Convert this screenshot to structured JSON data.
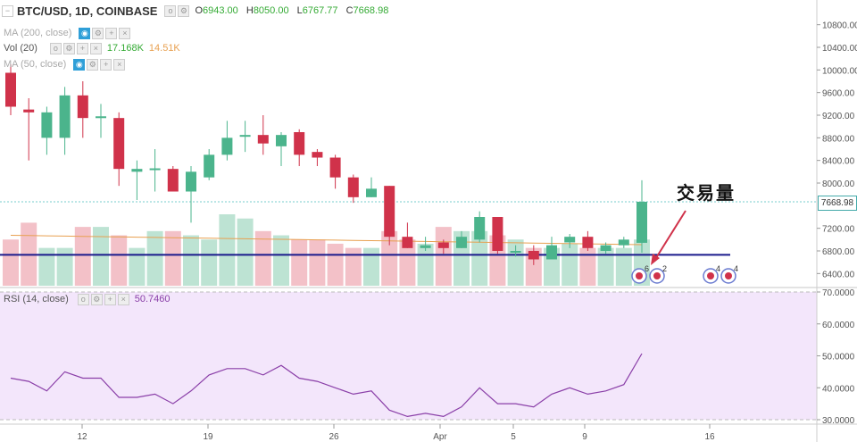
{
  "header": {
    "symbol": "BTC/USD, 1D, COINBASE",
    "open_label": "O",
    "open": "6943.00",
    "high_label": "H",
    "high": "8050.00",
    "low_label": "L",
    "low": "6767.77",
    "close_label": "C",
    "close": "7668.98"
  },
  "indicators": {
    "ma200": "MA (200, close)",
    "vol": "Vol (20)",
    "vol_value1": "17.168K",
    "vol_value2": "14.51K",
    "ma50": "MA (50, close)",
    "rsi": "RSI (14, close)",
    "rsi_value": "50.7460"
  },
  "annotation": "交易量",
  "last_price_tag": "7668.98",
  "event_badges": [
    "6",
    "2",
    "4",
    "4"
  ],
  "colors": {
    "up": "#4bb48c",
    "down": "#d0324a",
    "line": "#1a1a8c",
    "rsi_line": "#8a3fa8",
    "rsi_bg": "#f3e6fb"
  },
  "chart_data": {
    "type": "candlestick",
    "price_axis_ticks": [
      "10800.00",
      "10400.00",
      "10000.00",
      "9600.00",
      "9200.00",
      "8800.00",
      "8400.00",
      "8000.00",
      "7200.00",
      "6800.00",
      "6400.00"
    ],
    "rsi_axis_ticks": [
      "70.0000",
      "60.0000",
      "50.0000",
      "40.0000",
      "30.0000"
    ],
    "x_axis_ticks": [
      "12",
      "19",
      "26",
      "Apr",
      "5",
      "9",
      "16"
    ],
    "horizontal_line": 6730,
    "candles": [
      {
        "o": 9950,
        "h": 10100,
        "l": 9200,
        "c": 9350
      },
      {
        "o": 9300,
        "h": 9500,
        "l": 8400,
        "c": 9250
      },
      {
        "o": 8800,
        "h": 9350,
        "l": 8500,
        "c": 9250
      },
      {
        "o": 8800,
        "h": 9700,
        "l": 8500,
        "c": 9550
      },
      {
        "o": 9550,
        "h": 9800,
        "l": 8800,
        "c": 9150
      },
      {
        "o": 9150,
        "h": 9400,
        "l": 8800,
        "c": 9180
      },
      {
        "o": 9150,
        "h": 9250,
        "l": 7950,
        "c": 8250
      },
      {
        "o": 8200,
        "h": 8400,
        "l": 7700,
        "c": 8250
      },
      {
        "o": 8250,
        "h": 8600,
        "l": 7850,
        "c": 8260
      },
      {
        "o": 8250,
        "h": 8300,
        "l": 7850,
        "c": 7850
      },
      {
        "o": 7850,
        "h": 8300,
        "l": 7300,
        "c": 8200
      },
      {
        "o": 8100,
        "h": 8600,
        "l": 8050,
        "c": 8500
      },
      {
        "o": 8500,
        "h": 9100,
        "l": 8400,
        "c": 8800
      },
      {
        "o": 8850,
        "h": 9100,
        "l": 8550,
        "c": 8850
      },
      {
        "o": 8850,
        "h": 9200,
        "l": 8500,
        "c": 8700
      },
      {
        "o": 8650,
        "h": 8900,
        "l": 8300,
        "c": 8850
      },
      {
        "o": 8900,
        "h": 8950,
        "l": 8300,
        "c": 8500
      },
      {
        "o": 8550,
        "h": 8600,
        "l": 8300,
        "c": 8450
      },
      {
        "o": 8450,
        "h": 8500,
        "l": 7900,
        "c": 8100
      },
      {
        "o": 8100,
        "h": 8150,
        "l": 7650,
        "c": 7750
      },
      {
        "o": 7750,
        "h": 8100,
        "l": 7750,
        "c": 7900
      },
      {
        "o": 7950,
        "h": 7950,
        "l": 6900,
        "c": 7050
      },
      {
        "o": 7050,
        "h": 7300,
        "l": 6850,
        "c": 6850
      },
      {
        "o": 6850,
        "h": 7050,
        "l": 6800,
        "c": 6900
      },
      {
        "o": 6950,
        "h": 7000,
        "l": 6750,
        "c": 6850
      },
      {
        "o": 6850,
        "h": 7150,
        "l": 6850,
        "c": 7050
      },
      {
        "o": 7000,
        "h": 7500,
        "l": 6950,
        "c": 7400
      },
      {
        "o": 7400,
        "h": 7400,
        "l": 6750,
        "c": 6800
      },
      {
        "o": 6800,
        "h": 6900,
        "l": 6700,
        "c": 6800
      },
      {
        "o": 6800,
        "h": 6900,
        "l": 6550,
        "c": 6650
      },
      {
        "o": 6650,
        "h": 7050,
        "l": 6650,
        "c": 6900
      },
      {
        "o": 6950,
        "h": 7100,
        "l": 6850,
        "c": 7050
      },
      {
        "o": 7050,
        "h": 7150,
        "l": 6800,
        "c": 6850
      },
      {
        "o": 6800,
        "h": 6950,
        "l": 6750,
        "c": 6900
      },
      {
        "o": 6900,
        "h": 7050,
        "l": 6850,
        "c": 7000
      },
      {
        "o": 6943,
        "h": 8050,
        "l": 6768,
        "c": 7669
      }
    ],
    "volumes": [
      11,
      15,
      9,
      9,
      14,
      14,
      12,
      9,
      13,
      13,
      12,
      11,
      17,
      16,
      13,
      12,
      11,
      11,
      10,
      9,
      9,
      13,
      11,
      10,
      14,
      13,
      13,
      12,
      11,
      9,
      9,
      10,
      9,
      9,
      9,
      11
    ],
    "rsi": [
      43,
      42,
      39,
      45,
      43,
      43,
      37,
      37,
      38,
      35,
      39,
      44,
      46,
      46,
      44,
      47,
      43,
      42,
      40,
      38,
      39,
      33,
      31,
      32,
      31,
      34,
      40,
      35,
      35,
      34,
      38,
      40,
      38,
      39,
      41,
      50.7
    ]
  }
}
